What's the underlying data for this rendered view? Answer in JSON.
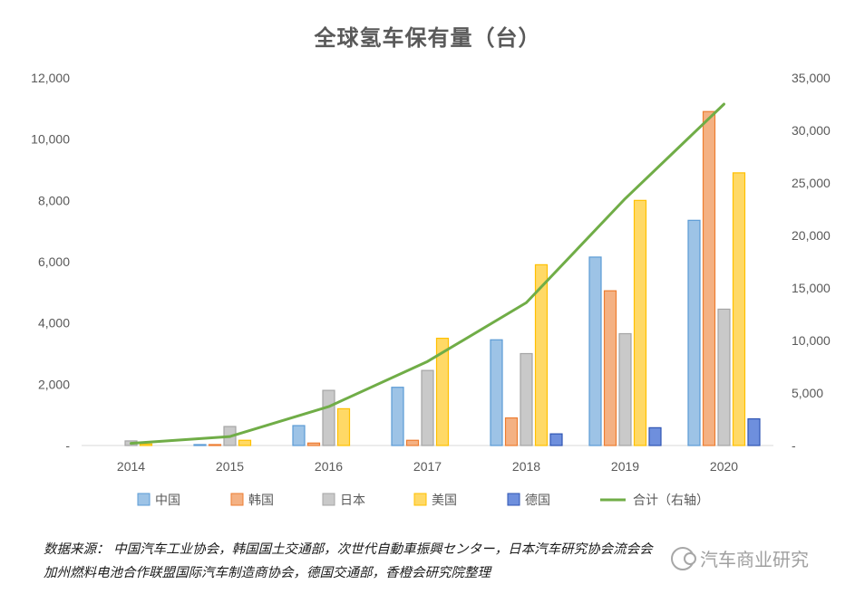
{
  "title": "全球氢车保有量（台）",
  "chart_data": {
    "type": "bar",
    "categories": [
      "2014",
      "2015",
      "2016",
      "2017",
      "2018",
      "2019",
      "2020"
    ],
    "series": [
      {
        "name": "中国",
        "values": [
          0,
          30,
          650,
          1900,
          3450,
          6150,
          7350
        ],
        "color": "#9dc3e6"
      },
      {
        "name": "韩国",
        "values": [
          0,
          30,
          80,
          170,
          900,
          5050,
          10900
        ],
        "color": "#f4b183"
      },
      {
        "name": "日本",
        "values": [
          150,
          620,
          1800,
          2450,
          3000,
          3650,
          4450
        ],
        "color": "#c9c9c9"
      },
      {
        "name": "美国",
        "values": [
          50,
          170,
          1200,
          3500,
          5900,
          8000,
          8900
        ],
        "color": "#ffd966"
      },
      {
        "name": "德国",
        "values": [
          0,
          0,
          0,
          0,
          380,
          580,
          870
        ],
        "color": "#6e8fdd"
      }
    ],
    "line": {
      "name": "合计（右轴）",
      "values": [
        200,
        850,
        3700,
        8000,
        13600,
        23500,
        32500
      ],
      "color": "#70ad47"
    },
    "ylim": [
      0,
      12000
    ],
    "y2lim": [
      0,
      35000
    ],
    "yticks": [
      "-",
      "2,000",
      "4,000",
      "6,000",
      "8,000",
      "10,000",
      "12,000"
    ],
    "y2ticks": [
      "-",
      "5,000",
      "10,000",
      "15,000",
      "20,000",
      "25,000",
      "30,000",
      "35,000"
    ],
    "grid": false,
    "legend": "bottom"
  },
  "source": {
    "line1": "数据来源：  中国汽车工业协会，韩国国土交通部，次世代自動車振興センター，日本汽车研究协会流会会",
    "line2": "加州燃料电池合作联盟国际汽车制造商协会，德国交通部，香橙会研究院整理"
  },
  "watermark": "汽车商业研究"
}
